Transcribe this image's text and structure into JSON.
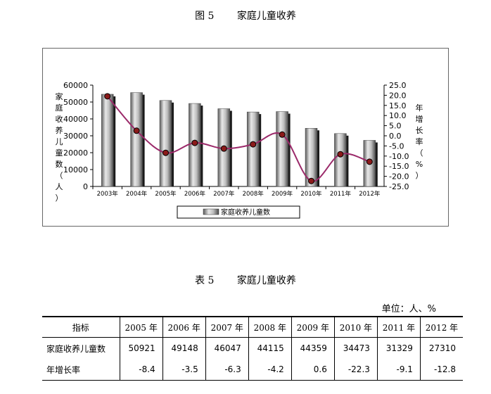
{
  "figure": {
    "label": "图 5",
    "title": "家庭儿童收养"
  },
  "table": {
    "label": "表 5",
    "title": "家庭儿童收养",
    "unit": "单位：人、%",
    "headers": [
      "指标",
      "2005 年",
      "2006 年",
      "2007 年",
      "2008 年",
      "2009 年",
      "2010 年",
      "2011 年",
      "2012 年"
    ],
    "rows": [
      {
        "label": "家庭收养儿童数",
        "values": [
          "50921",
          "49148",
          "46047",
          "44115",
          "44359",
          "34473",
          "31329",
          "27310"
        ]
      },
      {
        "label": "年增长率",
        "values": [
          "-8.4",
          "-3.5",
          "-6.3",
          "-4.2",
          "0.6",
          "-22.3",
          "-9.1",
          "-12.8"
        ]
      }
    ]
  },
  "chart_data": {
    "type": "bar",
    "categories": [
      "2003年",
      "2004年",
      "2005年",
      "2006年",
      "2007年",
      "2008年",
      "2009年",
      "2010年",
      "2011年",
      "2012年"
    ],
    "series": [
      {
        "name": "家庭收养儿童数",
        "type": "bar",
        "axis": "left",
        "values": [
          54600,
          55600,
          50921,
          49148,
          46047,
          44115,
          44359,
          34473,
          31329,
          27310
        ]
      },
      {
        "type": "line",
        "axis": "right",
        "values": [
          19.5,
          2.5,
          -8.4,
          -3.5,
          -6.3,
          -4.2,
          0.6,
          -22.3,
          -9.1,
          -12.8
        ]
      }
    ],
    "ylabel": "家庭收养儿童数（人）",
    "ylabel_right": "年增长率（%）",
    "ylim": [
      0,
      60000
    ],
    "yticks": [
      "0",
      "10000",
      "20000",
      "30000",
      "40000",
      "50000",
      "60000"
    ],
    "ylim_right": [
      -25,
      25
    ],
    "yticks_right": [
      "-25.0",
      "-20.0",
      "-15.0",
      "-10.0",
      "-5.0",
      "0.0",
      "5.0",
      "10.0",
      "15.0",
      "20.0",
      "25.0"
    ],
    "grid": false,
    "legend": "bottom",
    "colors": {
      "bar": "#a8a8a8",
      "bar_dark": "#1a1a1a",
      "line": "#9b2a6a",
      "marker": "#8b1a1a"
    }
  }
}
